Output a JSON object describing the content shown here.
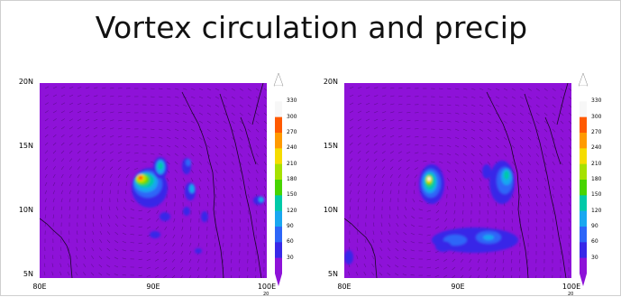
{
  "title": "Vortex circulation and precip",
  "panels": [
    {
      "lat_ticks": [
        "20N",
        "15N",
        "10N",
        "5N"
      ],
      "lon_ticks": [
        "80E",
        "90E",
        "100E"
      ],
      "scale_note": "20"
    },
    {
      "lat_ticks": [
        "20N",
        "15N",
        "10N",
        "5N"
      ],
      "lon_ticks": [
        "80E",
        "90E",
        "100E"
      ],
      "scale_note": "20"
    }
  ],
  "colorbar": {
    "levels": [
      "330",
      "300",
      "270",
      "240",
      "210",
      "180",
      "150",
      "120",
      "90",
      "60",
      "30"
    ],
    "colors": [
      "#ffffff",
      "#f7f7f7",
      "#ff5a00",
      "#ff9a00",
      "#f5dc00",
      "#a6e100",
      "#47d400",
      "#00c9a8",
      "#19a7f0",
      "#2d66f8",
      "#3828e8",
      "#8e12d8"
    ]
  },
  "colors": {
    "background": "#8e12d8"
  }
}
